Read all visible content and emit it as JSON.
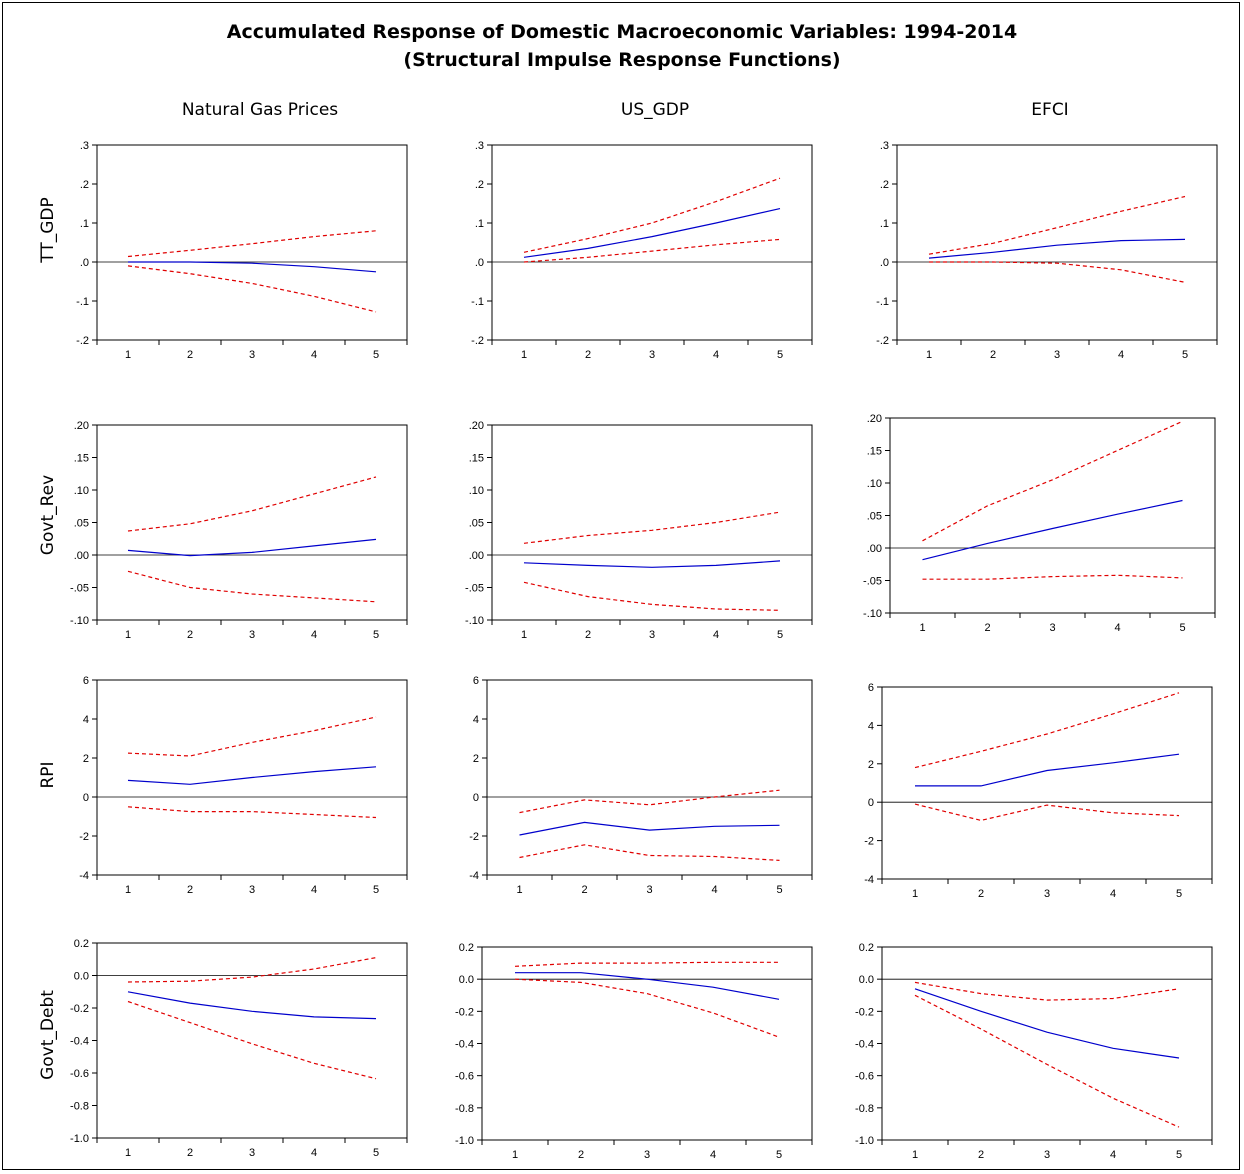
{
  "figure": {
    "title_line1": "Accumulated Response of Domestic Macroeconomic Variables: 1994-2014",
    "title_line2": "(Structural Impulse Response Functions)",
    "column_titles": [
      "Natural Gas Prices",
      "US_GDP",
      "EFCI"
    ],
    "row_titles": [
      "TT_GDP",
      "Govt_Rev",
      "RPI",
      "Govt_Debt"
    ]
  },
  "colors": {
    "response": "#0000cc",
    "bands": "#e00000",
    "axis": "#000000"
  },
  "chart_data": [
    {
      "type": "line",
      "shock": "Natural Gas Prices",
      "response": "TT_GDP",
      "x": [
        1,
        2,
        3,
        4,
        5
      ],
      "ylim": [
        -0.2,
        0.3
      ],
      "yticks": [
        -0.2,
        -0.1,
        0.0,
        0.1,
        0.2,
        0.3
      ],
      "ytick_labels": [
        "-.2",
        "-.1",
        ".0",
        ".1",
        ".2",
        ".3"
      ],
      "series": [
        {
          "values": [
            0.0,
            0.0,
            -0.003,
            -0.012,
            -0.025
          ]
        },
        {
          "values": [
            0.014,
            0.03,
            0.047,
            0.065,
            0.08
          ]
        },
        {
          "values": [
            -0.01,
            -0.03,
            -0.055,
            -0.088,
            -0.128
          ]
        }
      ]
    },
    {
      "type": "line",
      "shock": "US_GDP",
      "response": "TT_GDP",
      "x": [
        1,
        2,
        3,
        4,
        5
      ],
      "ylim": [
        -0.2,
        0.3
      ],
      "yticks": [
        -0.2,
        -0.1,
        0.0,
        0.1,
        0.2,
        0.3
      ],
      "ytick_labels": [
        "-.2",
        "-.1",
        ".0",
        ".1",
        ".2",
        ".3"
      ],
      "series": [
        {
          "values": [
            0.012,
            0.035,
            0.065,
            0.1,
            0.137
          ]
        },
        {
          "values": [
            0.025,
            0.06,
            0.1,
            0.155,
            0.215
          ]
        },
        {
          "values": [
            0.0,
            0.012,
            0.028,
            0.044,
            0.058
          ]
        }
      ]
    },
    {
      "type": "line",
      "shock": "EFCI",
      "response": "TT_GDP",
      "x": [
        1,
        2,
        3,
        4,
        5
      ],
      "ylim": [
        -0.2,
        0.3
      ],
      "yticks": [
        -0.2,
        -0.1,
        0.0,
        0.1,
        0.2,
        0.3
      ],
      "ytick_labels": [
        "-.2",
        "-.1",
        ".0",
        ".1",
        ".2",
        ".3"
      ],
      "series": [
        {
          "values": [
            0.01,
            0.025,
            0.043,
            0.055,
            0.058
          ]
        },
        {
          "values": [
            0.02,
            0.048,
            0.088,
            0.13,
            0.168
          ]
        },
        {
          "values": [
            0.0,
            0.0,
            -0.003,
            -0.02,
            -0.052
          ]
        }
      ]
    },
    {
      "type": "line",
      "shock": "Natural Gas Prices",
      "response": "Govt_Rev",
      "x": [
        1,
        2,
        3,
        4,
        5
      ],
      "ylim": [
        -0.1,
        0.2
      ],
      "yticks": [
        -0.1,
        -0.05,
        0.0,
        0.05,
        0.1,
        0.15,
        0.2
      ],
      "ytick_labels": [
        "-.10",
        "-.05",
        ".00",
        ".05",
        ".10",
        ".15",
        ".20"
      ],
      "series": [
        {
          "values": [
            0.007,
            -0.001,
            0.004,
            0.014,
            0.024
          ]
        },
        {
          "values": [
            0.037,
            0.048,
            0.068,
            0.094,
            0.12
          ]
        },
        {
          "values": [
            -0.025,
            -0.05,
            -0.06,
            -0.066,
            -0.072
          ]
        }
      ]
    },
    {
      "type": "line",
      "shock": "US_GDP",
      "response": "Govt_Rev",
      "x": [
        1,
        2,
        3,
        4,
        5
      ],
      "ylim": [
        -0.1,
        0.2
      ],
      "yticks": [
        -0.1,
        -0.05,
        0.0,
        0.05,
        0.1,
        0.15,
        0.2
      ],
      "ytick_labels": [
        "-.10",
        "-.05",
        ".00",
        ".05",
        ".10",
        ".15",
        ".20"
      ],
      "series": [
        {
          "values": [
            -0.012,
            -0.016,
            -0.019,
            -0.016,
            -0.009
          ]
        },
        {
          "values": [
            0.018,
            0.03,
            0.038,
            0.05,
            0.066
          ]
        },
        {
          "values": [
            -0.042,
            -0.064,
            -0.076,
            -0.083,
            -0.085
          ]
        }
      ]
    },
    {
      "type": "line",
      "shock": "EFCI",
      "response": "Govt_Rev",
      "x": [
        1,
        2,
        3,
        4,
        5
      ],
      "ylim": [
        -0.1,
        0.2
      ],
      "yticks": [
        -0.1,
        -0.05,
        0.0,
        0.05,
        0.1,
        0.15,
        0.2
      ],
      "ytick_labels": [
        "-.10",
        "-.05",
        ".00",
        ".05",
        ".10",
        ".15",
        ".20"
      ],
      "series": [
        {
          "values": [
            -0.018,
            0.007,
            0.03,
            0.052,
            0.073
          ]
        },
        {
          "values": [
            0.011,
            0.065,
            0.105,
            0.15,
            0.195
          ]
        },
        {
          "values": [
            -0.048,
            -0.048,
            -0.044,
            -0.042,
            -0.046
          ]
        }
      ]
    },
    {
      "type": "line",
      "shock": "Natural Gas Prices",
      "response": "RPI",
      "x": [
        1,
        2,
        3,
        4,
        5
      ],
      "ylim": [
        -4,
        6
      ],
      "yticks": [
        -4,
        -2,
        0,
        2,
        4,
        6
      ],
      "ytick_labels": [
        "-4",
        "-2",
        "0",
        "2",
        "4",
        "6"
      ],
      "series": [
        {
          "values": [
            0.85,
            0.65,
            1.0,
            1.3,
            1.55
          ]
        },
        {
          "values": [
            2.25,
            2.1,
            2.8,
            3.4,
            4.1
          ]
        },
        {
          "values": [
            -0.5,
            -0.75,
            -0.75,
            -0.9,
            -1.05
          ]
        }
      ]
    },
    {
      "type": "line",
      "shock": "US_GDP",
      "response": "RPI",
      "x": [
        1,
        2,
        3,
        4,
        5
      ],
      "ylim": [
        -4,
        6
      ],
      "yticks": [
        -4,
        -2,
        0,
        2,
        4,
        6
      ],
      "ytick_labels": [
        "-4",
        "-2",
        "0",
        "2",
        "4",
        "6"
      ],
      "series": [
        {
          "values": [
            -1.95,
            -1.3,
            -1.7,
            -1.5,
            -1.45
          ]
        },
        {
          "values": [
            -0.8,
            -0.15,
            -0.4,
            0.0,
            0.35
          ]
        },
        {
          "values": [
            -3.1,
            -2.45,
            -3.0,
            -3.05,
            -3.25
          ]
        }
      ]
    },
    {
      "type": "line",
      "shock": "EFCI",
      "response": "RPI",
      "x": [
        1,
        2,
        3,
        4,
        5
      ],
      "ylim": [
        -4,
        6
      ],
      "yticks": [
        -4,
        -2,
        0,
        2,
        4,
        6
      ],
      "ytick_labels": [
        "-4",
        "-2",
        "0",
        "2",
        "4",
        "6"
      ],
      "series": [
        {
          "values": [
            0.85,
            0.85,
            1.65,
            2.05,
            2.5
          ]
        },
        {
          "values": [
            1.8,
            2.65,
            3.55,
            4.6,
            5.7
          ]
        },
        {
          "values": [
            -0.1,
            -0.95,
            -0.15,
            -0.55,
            -0.7
          ]
        }
      ]
    },
    {
      "type": "line",
      "shock": "Natural Gas Prices",
      "response": "Govt_Debt",
      "x": [
        1,
        2,
        3,
        4,
        5
      ],
      "ylim": [
        -1.0,
        0.2
      ],
      "yticks": [
        -1.0,
        -0.8,
        -0.6,
        -0.4,
        -0.2,
        0.0,
        0.2
      ],
      "ytick_labels": [
        "-1.0",
        "-0.8",
        "-0.6",
        "-0.4",
        "-0.2",
        "0.0",
        "0.2"
      ],
      "series": [
        {
          "values": [
            -0.1,
            -0.17,
            -0.22,
            -0.255,
            -0.265
          ]
        },
        {
          "values": [
            -0.04,
            -0.035,
            -0.01,
            0.04,
            0.11
          ]
        },
        {
          "values": [
            -0.16,
            -0.29,
            -0.42,
            -0.54,
            -0.635
          ]
        }
      ]
    },
    {
      "type": "line",
      "shock": "US_GDP",
      "response": "Govt_Debt",
      "x": [
        1,
        2,
        3,
        4,
        5
      ],
      "ylim": [
        -1.0,
        0.2
      ],
      "yticks": [
        -1.0,
        -0.8,
        -0.6,
        -0.4,
        -0.2,
        0.0,
        0.2
      ],
      "ytick_labels": [
        "-1.0",
        "-0.8",
        "-0.6",
        "-0.4",
        "-0.2",
        "0.0",
        "0.2"
      ],
      "series": [
        {
          "values": [
            0.04,
            0.04,
            0.0,
            -0.05,
            -0.125
          ]
        },
        {
          "values": [
            0.08,
            0.1,
            0.1,
            0.105,
            0.105
          ]
        },
        {
          "values": [
            0.0,
            -0.02,
            -0.09,
            -0.21,
            -0.36
          ]
        }
      ]
    },
    {
      "type": "line",
      "shock": "EFCI",
      "response": "Govt_Debt",
      "x": [
        1,
        2,
        3,
        4,
        5
      ],
      "ylim": [
        -1.0,
        0.2
      ],
      "yticks": [
        -1.0,
        -0.8,
        -0.6,
        -0.4,
        -0.2,
        0.0,
        0.2
      ],
      "ytick_labels": [
        "-1.0",
        "-0.8",
        "-0.6",
        "-0.4",
        "-0.2",
        "0.0",
        "0.2"
      ],
      "series": [
        {
          "values": [
            -0.06,
            -0.2,
            -0.33,
            -0.43,
            -0.49
          ]
        },
        {
          "values": [
            -0.02,
            -0.09,
            -0.13,
            -0.12,
            -0.06
          ]
        },
        {
          "values": [
            -0.1,
            -0.31,
            -0.53,
            -0.74,
            -0.92
          ]
        }
      ]
    }
  ]
}
